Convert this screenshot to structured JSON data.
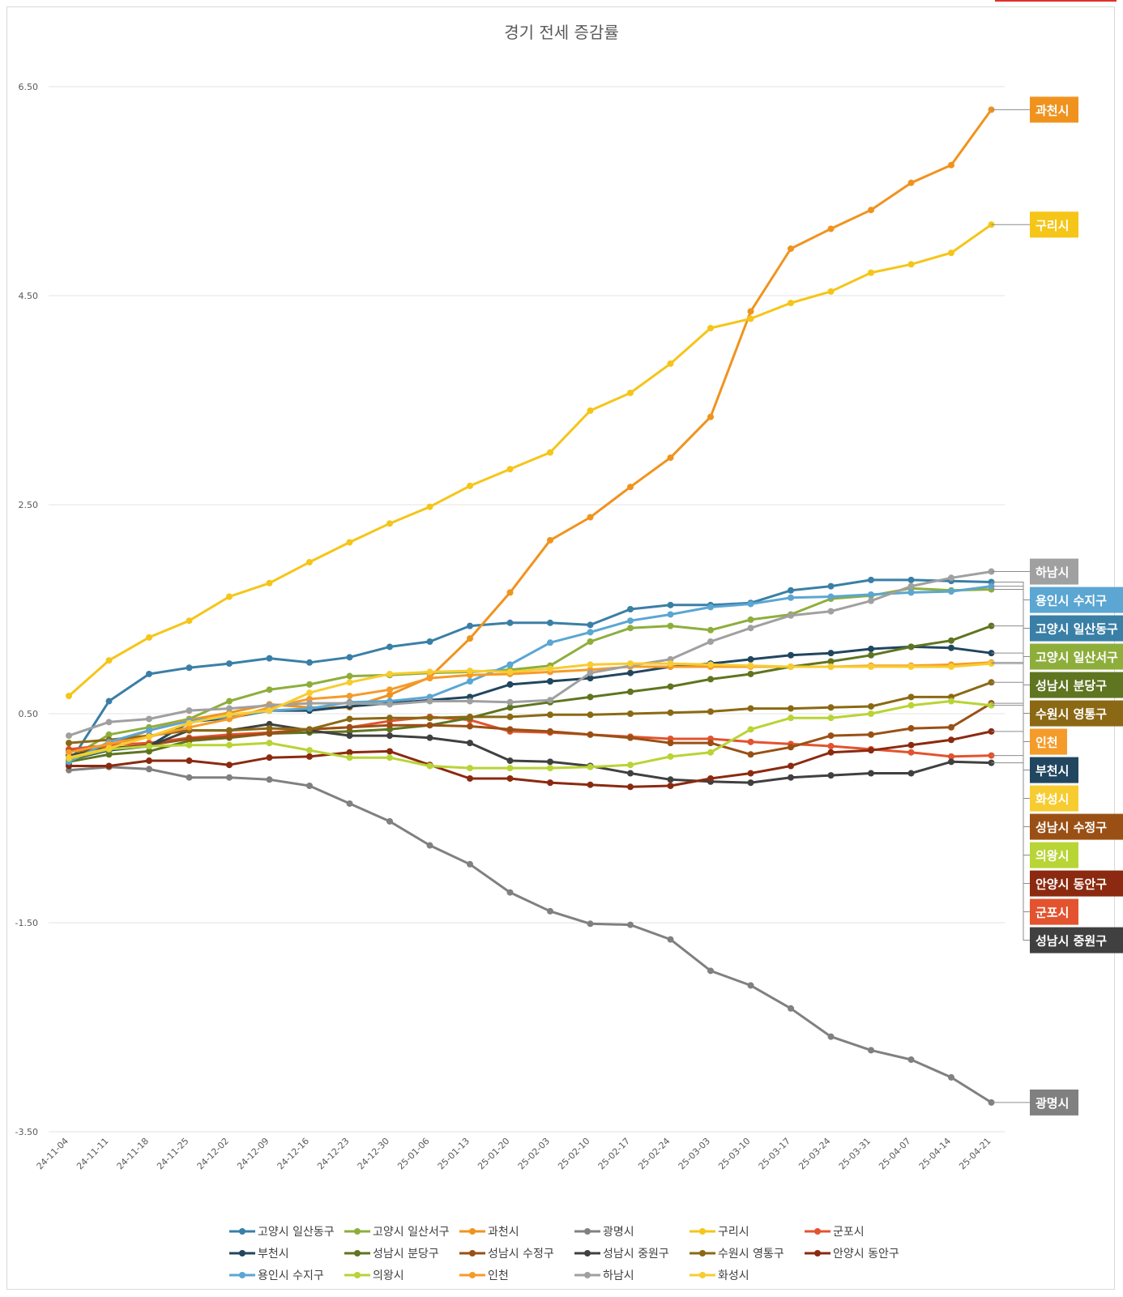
{
  "chart_data": {
    "type": "line",
    "title": "경기 전세 증감률",
    "xlabel": "",
    "ylabel": "",
    "ylim": [
      -3.5,
      6.5
    ],
    "yticks": [
      "6.50",
      "4.50",
      "2.50",
      "0.50",
      "-1.50",
      "-3.50"
    ],
    "ytick_values": [
      6.5,
      4.5,
      2.5,
      0.5,
      -1.5,
      -3.5
    ],
    "grid": true,
    "legend": "bottom",
    "categories": [
      "24-11-04",
      "24-11-11",
      "24-11-18",
      "24-11-25",
      "24-12-02",
      "24-12-09",
      "24-12-16",
      "24-12-23",
      "24-12-30",
      "25-01-06",
      "25-01-13",
      "25-01-20",
      "25-02-03",
      "25-02-10",
      "25-02-17",
      "25-02-24",
      "25-03-03",
      "25-03-10",
      "25-03-17",
      "25-03-24",
      "25-03-31",
      "25-04-07",
      "25-04-14",
      "25-04-21"
    ],
    "series": [
      {
        "name": "고양시 일산동구",
        "color": "#3a7fa6",
        "values": [
          0.02,
          0.62,
          0.88,
          0.94,
          0.98,
          1.03,
          0.99,
          1.04,
          1.14,
          1.19,
          1.34,
          1.37,
          1.37,
          1.35,
          1.5,
          1.54,
          1.54,
          1.56,
          1.68,
          1.72,
          1.78,
          1.78,
          1.77,
          1.76
        ]
      },
      {
        "name": "고양시 일산서구",
        "color": "#8eae3c",
        "values": [
          0.07,
          0.3,
          0.37,
          0.45,
          0.62,
          0.73,
          0.78,
          0.86,
          0.87,
          0.89,
          0.9,
          0.92,
          0.96,
          1.19,
          1.32,
          1.34,
          1.3,
          1.4,
          1.45,
          1.6,
          1.63,
          1.7,
          1.68,
          1.69
        ]
      },
      {
        "name": "과천시",
        "color": "#f0931e",
        "values": [
          0.05,
          0.2,
          0.34,
          0.44,
          0.51,
          0.59,
          0.56,
          0.56,
          0.68,
          0.85,
          1.22,
          1.66,
          2.16,
          2.38,
          2.67,
          2.95,
          3.34,
          4.35,
          4.95,
          5.14,
          5.32,
          5.58,
          5.75,
          6.28
        ]
      },
      {
        "name": "광명시",
        "color": "#808080",
        "values": [
          -0.04,
          -0.01,
          -0.03,
          -0.11,
          -0.11,
          -0.13,
          -0.19,
          -0.36,
          -0.53,
          -0.76,
          -0.94,
          -1.21,
          -1.39,
          -1.51,
          -1.52,
          -1.66,
          -1.96,
          -2.1,
          -2.32,
          -2.59,
          -2.72,
          -2.81,
          -2.98,
          -3.22
        ]
      },
      {
        "name": "구리시",
        "color": "#f5c518",
        "values": [
          0.67,
          1.01,
          1.23,
          1.39,
          1.62,
          1.75,
          1.95,
          2.14,
          2.32,
          2.48,
          2.68,
          2.84,
          3.0,
          3.4,
          3.57,
          3.85,
          4.19,
          4.28,
          4.43,
          4.54,
          4.72,
          4.8,
          4.91,
          5.18
        ]
      },
      {
        "name": "군포시",
        "color": "#e3532f",
        "values": [
          0.16,
          0.2,
          0.22,
          0.27,
          0.3,
          0.32,
          0.35,
          0.37,
          0.43,
          0.47,
          0.44,
          0.33,
          0.32,
          0.3,
          0.28,
          0.26,
          0.26,
          0.23,
          0.21,
          0.19,
          0.16,
          0.13,
          0.09,
          0.1
        ]
      },
      {
        "name": "부천시",
        "color": "#21465f",
        "values": [
          0.06,
          0.15,
          0.19,
          0.42,
          0.46,
          0.53,
          0.53,
          0.57,
          0.6,
          0.63,
          0.66,
          0.78,
          0.81,
          0.84,
          0.89,
          0.95,
          0.98,
          1.02,
          1.06,
          1.08,
          1.12,
          1.14,
          1.13,
          1.08
        ]
      },
      {
        "name": "성남시 분당구",
        "color": "#5f7520",
        "values": [
          0.04,
          0.11,
          0.14,
          0.24,
          0.27,
          0.31,
          0.32,
          0.33,
          0.35,
          0.39,
          0.46,
          0.56,
          0.61,
          0.66,
          0.71,
          0.76,
          0.83,
          0.88,
          0.95,
          1.0,
          1.06,
          1.14,
          1.2,
          1.34
        ]
      },
      {
        "name": "성남시 수정구",
        "color": "#9a5015",
        "values": [
          0.14,
          0.17,
          0.2,
          0.26,
          0.28,
          0.31,
          0.35,
          0.37,
          0.39,
          0.39,
          0.38,
          0.35,
          0.33,
          0.3,
          0.27,
          0.22,
          0.22,
          0.11,
          0.18,
          0.29,
          0.3,
          0.36,
          0.37,
          0.6
        ]
      },
      {
        "name": "성남시 중원구",
        "color": "#404040",
        "values": [
          0.1,
          0.17,
          0.19,
          0.34,
          0.34,
          0.4,
          0.34,
          0.29,
          0.29,
          0.27,
          0.22,
          0.05,
          0.04,
          0.0,
          -0.07,
          -0.13,
          -0.15,
          -0.16,
          -0.11,
          -0.09,
          -0.07,
          -0.07,
          0.04,
          0.03
        ]
      },
      {
        "name": "수원시 영통구",
        "color": "#8b6914",
        "values": [
          0.22,
          0.25,
          0.29,
          0.34,
          0.34,
          0.36,
          0.35,
          0.45,
          0.46,
          0.46,
          0.47,
          0.47,
          0.49,
          0.49,
          0.5,
          0.51,
          0.52,
          0.55,
          0.55,
          0.56,
          0.57,
          0.66,
          0.66,
          0.8
        ]
      },
      {
        "name": "안양시 동안구",
        "color": "#8b2a10",
        "values": [
          0.0,
          0.0,
          0.05,
          0.05,
          0.01,
          0.08,
          0.09,
          0.13,
          0.14,
          0.01,
          -0.12,
          -0.12,
          -0.16,
          -0.18,
          -0.2,
          -0.19,
          -0.12,
          -0.07,
          0.0,
          0.13,
          0.15,
          0.2,
          0.25,
          0.33
        ]
      },
      {
        "name": "용인시 수지구",
        "color": "#5ba6d2",
        "values": [
          0.04,
          0.23,
          0.34,
          0.43,
          0.47,
          0.53,
          0.55,
          0.61,
          0.62,
          0.66,
          0.81,
          0.97,
          1.18,
          1.28,
          1.39,
          1.45,
          1.52,
          1.55,
          1.61,
          1.62,
          1.64,
          1.66,
          1.67,
          1.72
        ]
      },
      {
        "name": "의왕시",
        "color": "#b8d435",
        "values": [
          0.07,
          0.16,
          0.19,
          0.2,
          0.2,
          0.22,
          0.15,
          0.08,
          0.08,
          0.0,
          -0.02,
          -0.02,
          -0.02,
          -0.01,
          0.01,
          0.09,
          0.13,
          0.35,
          0.46,
          0.46,
          0.5,
          0.58,
          0.62,
          0.58
        ]
      },
      {
        "name": "인천",
        "color": "#f59b2a",
        "values": [
          0.13,
          0.21,
          0.28,
          0.37,
          0.45,
          0.56,
          0.64,
          0.67,
          0.73,
          0.84,
          0.87,
          0.88,
          0.9,
          0.92,
          0.95,
          0.95,
          0.95,
          0.95,
          0.95,
          0.95,
          0.96,
          0.96,
          0.97,
          0.99
        ]
      },
      {
        "name": "하남시",
        "color": "#a0a0a0",
        "values": [
          0.29,
          0.42,
          0.45,
          0.53,
          0.55,
          0.58,
          0.6,
          0.6,
          0.59,
          0.62,
          0.62,
          0.61,
          0.63,
          0.89,
          0.96,
          1.02,
          1.19,
          1.32,
          1.44,
          1.48,
          1.58,
          1.72,
          1.8,
          1.86
        ]
      },
      {
        "name": "화성시",
        "color": "#f7cc30",
        "values": [
          0.08,
          0.17,
          0.28,
          0.41,
          0.49,
          0.53,
          0.7,
          0.8,
          0.88,
          0.9,
          0.91,
          0.9,
          0.93,
          0.97,
          0.98,
          0.98,
          0.97,
          0.96,
          0.95,
          0.95,
          0.95,
          0.95,
          0.95,
          0.98
        ]
      }
    ],
    "end_labels": [
      {
        "name": "과천시",
        "color": "#f0931e",
        "text_color": "#ffffff"
      },
      {
        "name": "구리시",
        "color": "#f5c518",
        "text_color": "#ffffff"
      },
      {
        "name": "하남시",
        "color": "#a0a0a0",
        "text_color": "#ffffff"
      },
      {
        "name": "용인시 수지구",
        "color": "#5ba6d2",
        "text_color": "#ffffff"
      },
      {
        "name": "고양시 일산동구",
        "color": "#3a7fa6",
        "text_color": "#ffffff"
      },
      {
        "name": "고양시 일산서구",
        "color": "#8eae3c",
        "text_color": "#ffffff"
      },
      {
        "name": "성남시 분당구",
        "color": "#5f7520",
        "text_color": "#ffffff"
      },
      {
        "name": "수원시 영통구",
        "color": "#8b6914",
        "text_color": "#ffffff"
      },
      {
        "name": "인천",
        "color": "#f59b2a",
        "text_color": "#ffffff"
      },
      {
        "name": "부천시",
        "color": "#21465f",
        "text_color": "#ffffff"
      },
      {
        "name": "화성시",
        "color": "#f7cc30",
        "text_color": "#ffffff"
      },
      {
        "name": "성남시 수정구",
        "color": "#9a5015",
        "text_color": "#ffffff"
      },
      {
        "name": "의왕시",
        "color": "#b8d435",
        "text_color": "#ffffff"
      },
      {
        "name": "안양시 동안구",
        "color": "#8b2a10",
        "text_color": "#ffffff"
      },
      {
        "name": "군포시",
        "color": "#e3532f",
        "text_color": "#ffffff"
      },
      {
        "name": "성남시 중원구",
        "color": "#404040",
        "text_color": "#ffffff"
      },
      {
        "name": "광명시",
        "color": "#808080",
        "text_color": "#ffffff"
      }
    ]
  }
}
